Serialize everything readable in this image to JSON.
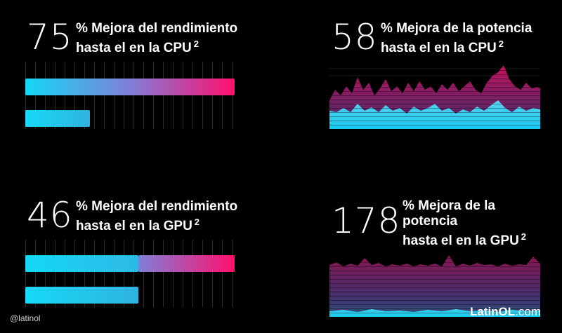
{
  "cpu_perf": {
    "value": "75",
    "line1": "% Mejora del rendimiento",
    "line2": "hasta el en la CPU",
    "sup": "2",
    "fraction_top": 1.0,
    "fraction_bottom": 0.31
  },
  "cpu_power": {
    "value": "58",
    "line1": "% Mejora de la potencia",
    "line2": "hasta el en la CPU",
    "sup": "2"
  },
  "gpu_perf": {
    "value": "46",
    "line1": "% Mejora del rendimiento",
    "line2": "hasta el en la GPU",
    "sup": "2",
    "fraction_top": 1.0,
    "fraction_top_split": 0.54,
    "fraction_bottom": 0.54
  },
  "gpu_power": {
    "value": "178",
    "line1": "% Mejora de la",
    "line2": "potencia",
    "line3": "hasta el en la GPU",
    "sup": "2"
  },
  "watermark": {
    "handle": "@latinol",
    "brand_main": "LatinOL",
    "brand_suffix": ".com"
  },
  "colors": {
    "cyan": "#13d8f5",
    "magenta": "#ff0f6e",
    "purple": "#7f7fd9"
  }
}
